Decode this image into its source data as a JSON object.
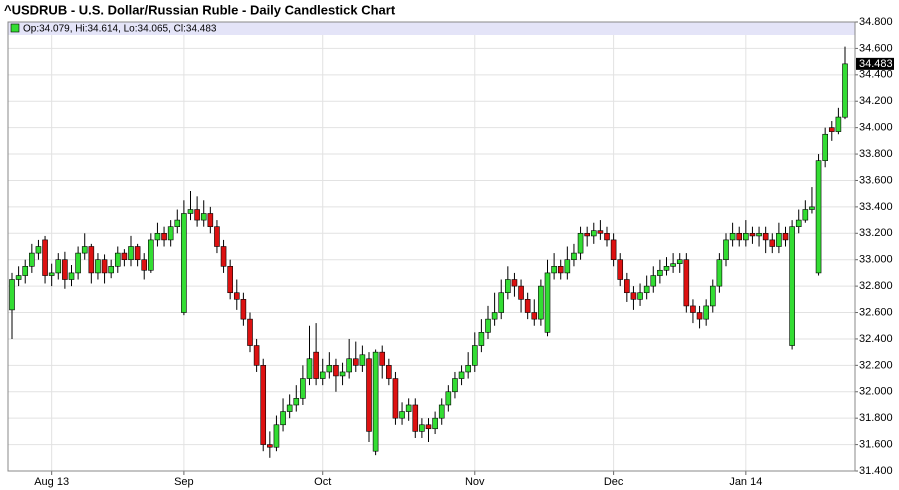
{
  "chart_data": {
    "type": "candlestick",
    "title": "^USDRUB - U.S. Dollar/Russian Ruble - Daily Candlestick Chart",
    "legend": "Op:34.079, Hi:34.614, Lo:34.065, Cl:34.483",
    "up_color": "#33dd33",
    "down_color": "#dd1111",
    "grid": true,
    "categories": [
      null,
      null,
      null,
      null,
      null,
      null,
      "Aug 13",
      null,
      null,
      null,
      null,
      null,
      null,
      null,
      null,
      null,
      null,
      null,
      null,
      null,
      null,
      null,
      null,
      null,
      null,
      null,
      "Sep",
      null,
      null,
      null,
      null,
      null,
      null,
      null,
      null,
      null,
      null,
      null,
      null,
      null,
      null,
      null,
      null,
      null,
      null,
      null,
      null,
      "Oct",
      null,
      null,
      null,
      null,
      null,
      null,
      null,
      null,
      null,
      null,
      null,
      null,
      null,
      null,
      null,
      null,
      null,
      null,
      null,
      null,
      null,
      null,
      "Nov",
      null,
      null,
      null,
      null,
      null,
      null,
      null,
      null,
      null,
      null,
      null,
      null,
      null,
      null,
      null,
      null,
      null,
      null,
      null,
      null,
      "Dec",
      null,
      null,
      null,
      null,
      null,
      null,
      null,
      null,
      null,
      null,
      null,
      null,
      null,
      null,
      null,
      null,
      null,
      null,
      null,
      "Jan 14",
      null,
      null,
      null,
      null,
      null,
      null,
      null,
      null,
      null,
      null,
      null,
      null,
      null,
      null,
      null
    ],
    "open": [
      32.62,
      32.85,
      32.88,
      32.95,
      33.05,
      33.15,
      32.88,
      32.9,
      33.0,
      32.85,
      32.9,
      33.05,
      33.1,
      32.9,
      33.0,
      32.9,
      32.95,
      33.05,
      33.0,
      33.1,
      33.0,
      32.92,
      33.15,
      33.2,
      33.15,
      33.25,
      32.6,
      33.35,
      33.38,
      33.3,
      33.35,
      33.25,
      33.1,
      32.95,
      32.75,
      32.7,
      32.55,
      32.35,
      32.2,
      31.6,
      31.58,
      31.75,
      31.85,
      31.9,
      31.95,
      32.1,
      32.3,
      32.1,
      32.15,
      32.2,
      32.12,
      32.15,
      32.25,
      32.2,
      32.25,
      31.55,
      32.3,
      32.2,
      32.1,
      31.8,
      31.85,
      31.9,
      31.7,
      31.75,
      31.72,
      31.8,
      31.9,
      32.0,
      32.1,
      32.15,
      32.2,
      32.35,
      32.45,
      32.55,
      32.6,
      32.75,
      32.85,
      32.8,
      32.7,
      32.6,
      32.55,
      32.45,
      32.9,
      32.95,
      32.9,
      33.0,
      33.05,
      33.2,
      33.18,
      33.22,
      33.2,
      33.15,
      33.0,
      32.85,
      32.75,
      32.7,
      32.75,
      32.8,
      32.88,
      32.92,
      32.95,
      32.97,
      33.0,
      32.65,
      32.6,
      32.55,
      32.65,
      32.8,
      33.0,
      33.15,
      33.2,
      33.15,
      33.2,
      33.18,
      33.2,
      33.15,
      33.1,
      33.2,
      32.35,
      33.25,
      33.3,
      33.38,
      32.9,
      33.75,
      34.0,
      33.97,
      34.079
    ],
    "high": [
      32.9,
      32.95,
      33.0,
      33.12,
      33.15,
      33.18,
      32.97,
      33.05,
      33.06,
      32.96,
      33.1,
      33.2,
      33.12,
      33.05,
      33.04,
      33.0,
      33.1,
      33.08,
      33.18,
      33.12,
      33.05,
      33.2,
      33.28,
      33.25,
      33.3,
      33.38,
      33.45,
      33.52,
      33.48,
      33.45,
      33.4,
      33.3,
      33.15,
      33.0,
      32.85,
      32.75,
      32.6,
      32.4,
      32.25,
      31.7,
      31.82,
      31.95,
      31.98,
      32.05,
      32.2,
      32.5,
      32.52,
      32.25,
      32.3,
      32.25,
      32.22,
      32.4,
      32.38,
      32.35,
      32.3,
      32.32,
      32.35,
      32.25,
      32.15,
      31.92,
      31.95,
      31.95,
      31.8,
      31.8,
      31.85,
      31.95,
      32.05,
      32.15,
      32.2,
      32.3,
      32.45,
      32.55,
      32.65,
      32.75,
      32.85,
      32.95,
      32.9,
      32.85,
      32.75,
      32.7,
      32.85,
      33.0,
      33.05,
      33.0,
      33.1,
      33.12,
      33.25,
      33.25,
      33.28,
      33.3,
      33.25,
      33.2,
      33.05,
      32.9,
      32.8,
      32.82,
      32.88,
      32.95,
      33.0,
      33.02,
      33.05,
      33.05,
      33.05,
      32.7,
      32.65,
      32.7,
      32.85,
      33.05,
      33.2,
      33.28,
      33.25,
      33.3,
      33.25,
      33.25,
      33.25,
      33.2,
      33.28,
      33.25,
      33.3,
      33.38,
      33.45,
      33.55,
      33.8,
      34.0,
      34.05,
      34.15,
      34.614
    ],
    "low": [
      32.4,
      32.8,
      32.82,
      32.9,
      33.0,
      32.82,
      32.8,
      32.85,
      32.78,
      32.8,
      32.85,
      33.0,
      32.82,
      32.85,
      32.82,
      32.86,
      32.9,
      32.95,
      32.95,
      32.95,
      32.85,
      32.9,
      33.1,
      33.1,
      33.1,
      33.2,
      32.58,
      33.3,
      33.25,
      33.25,
      33.2,
      33.05,
      32.9,
      32.7,
      32.62,
      32.5,
      32.3,
      32.15,
      31.55,
      31.5,
      31.55,
      31.7,
      31.8,
      31.85,
      31.9,
      32.05,
      32.05,
      32.05,
      32.1,
      32.0,
      32.05,
      32.1,
      32.15,
      32.15,
      31.62,
      31.52,
      32.1,
      32.05,
      31.75,
      31.75,
      31.78,
      31.65,
      31.65,
      31.62,
      31.68,
      31.75,
      31.85,
      31.95,
      32.05,
      32.1,
      32.15,
      32.3,
      32.4,
      32.5,
      32.55,
      32.7,
      32.72,
      32.6,
      32.55,
      32.5,
      32.5,
      32.42,
      32.85,
      32.85,
      32.85,
      32.95,
      33.0,
      33.1,
      33.12,
      33.15,
      33.1,
      32.95,
      32.8,
      32.68,
      32.62,
      32.65,
      32.7,
      32.75,
      32.82,
      32.88,
      32.9,
      32.9,
      32.6,
      32.52,
      32.48,
      32.5,
      32.6,
      32.75,
      32.95,
      33.1,
      33.1,
      33.1,
      33.12,
      33.1,
      33.05,
      33.05,
      33.05,
      33.1,
      32.32,
      33.2,
      33.28,
      33.35,
      32.88,
      33.7,
      33.9,
      33.95,
      34.065
    ],
    "close": [
      32.85,
      32.88,
      32.95,
      33.05,
      33.1,
      32.88,
      32.9,
      33.0,
      32.85,
      32.9,
      33.05,
      33.1,
      32.9,
      33.0,
      32.9,
      32.95,
      33.05,
      33.0,
      33.1,
      33.0,
      32.92,
      33.15,
      33.2,
      33.15,
      33.25,
      33.3,
      33.35,
      33.38,
      33.3,
      33.35,
      33.25,
      33.1,
      32.95,
      32.75,
      32.7,
      32.55,
      32.35,
      32.2,
      31.6,
      31.58,
      31.75,
      31.85,
      31.9,
      31.95,
      32.1,
      32.25,
      32.1,
      32.15,
      32.2,
      32.12,
      32.15,
      32.25,
      32.2,
      32.28,
      31.7,
      32.3,
      32.2,
      32.1,
      31.8,
      31.85,
      31.9,
      31.7,
      31.75,
      31.72,
      31.8,
      31.9,
      32.0,
      32.1,
      32.15,
      32.2,
      32.35,
      32.45,
      32.55,
      32.6,
      32.75,
      32.85,
      32.8,
      32.7,
      32.6,
      32.55,
      32.8,
      32.9,
      32.95,
      32.9,
      33.0,
      33.05,
      33.2,
      33.18,
      33.22,
      33.2,
      33.15,
      33.0,
      32.85,
      32.75,
      32.7,
      32.75,
      32.8,
      32.88,
      32.92,
      32.95,
      32.97,
      33.0,
      32.65,
      32.6,
      32.55,
      32.65,
      32.8,
      33.0,
      33.15,
      33.2,
      33.15,
      33.2,
      33.18,
      33.2,
      33.15,
      33.1,
      33.2,
      33.15,
      33.25,
      33.3,
      33.38,
      33.4,
      33.75,
      33.95,
      33.97,
      34.08,
      34.483
    ],
    "ylim": [
      31.4,
      34.8
    ],
    "yticks": [
      {
        "value": 31.4,
        "label": "31.400"
      },
      {
        "value": 31.6,
        "label": "31.600"
      },
      {
        "value": 31.8,
        "label": "31.800"
      },
      {
        "value": 32.0,
        "label": "32.000"
      },
      {
        "value": 32.2,
        "label": "32.200"
      },
      {
        "value": 32.4,
        "label": "32.400"
      },
      {
        "value": 32.6,
        "label": "32.600"
      },
      {
        "value": 32.8,
        "label": "32.800"
      },
      {
        "value": 33.0,
        "label": "33.000"
      },
      {
        "value": 33.2,
        "label": "33.200"
      },
      {
        "value": 33.4,
        "label": "33.400"
      },
      {
        "value": 33.6,
        "label": "33.600"
      },
      {
        "value": 33.8,
        "label": "33.800"
      },
      {
        "value": 34.0,
        "label": "34.000"
      },
      {
        "value": 34.2,
        "label": "34.200"
      },
      {
        "value": 34.4,
        "label": "34.400"
      },
      {
        "value": 34.6,
        "label": "34.600"
      },
      {
        "value": 34.8,
        "label": "34.800"
      }
    ]
  }
}
